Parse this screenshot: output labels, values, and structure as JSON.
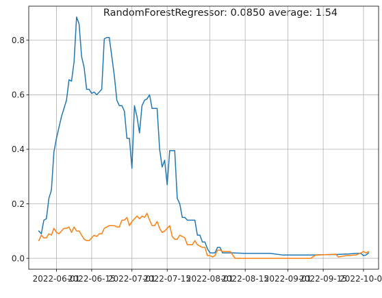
{
  "chart_data": {
    "type": "line",
    "title": "RandomForestRegressor: 0.0850 average: 1.54",
    "xlabel": "",
    "ylabel": "",
    "grid": true,
    "x_range": [
      "2022-05-21",
      "2022-10-07"
    ],
    "ylim": [
      -0.04,
      0.925
    ],
    "x_ticks": [
      "2022-06-01",
      "2022-06-15",
      "2022-07-01",
      "2022-07-15",
      "2022-08-01",
      "2022-08-15",
      "2022-09-01",
      "2022-09-15",
      "2022-10-01"
    ],
    "y_ticks": [
      "0.0",
      "0.2",
      "0.4",
      "0.6",
      "0.8"
    ],
    "series": [
      {
        "color": "#1f77b4",
        "points": [
          [
            "2022-05-25",
            0.1
          ],
          [
            "2022-05-26",
            0.09
          ],
          [
            "2022-05-27",
            0.14
          ],
          [
            "2022-05-28",
            0.145
          ],
          [
            "2022-05-29",
            0.22
          ],
          [
            "2022-05-30",
            0.25
          ],
          [
            "2022-05-31",
            0.39
          ],
          [
            "2022-06-01",
            0.44
          ],
          [
            "2022-06-02",
            0.48
          ],
          [
            "2022-06-03",
            0.52
          ],
          [
            "2022-06-04",
            0.55
          ],
          [
            "2022-06-05",
            0.58
          ],
          [
            "2022-06-06",
            0.655
          ],
          [
            "2022-06-07",
            0.65
          ],
          [
            "2022-06-08",
            0.72
          ],
          [
            "2022-06-09",
            0.885
          ],
          [
            "2022-06-10",
            0.86
          ],
          [
            "2022-06-11",
            0.74
          ],
          [
            "2022-06-12",
            0.7
          ],
          [
            "2022-06-13",
            0.62
          ],
          [
            "2022-06-14",
            0.62
          ],
          [
            "2022-06-15",
            0.605
          ],
          [
            "2022-06-16",
            0.61
          ],
          [
            "2022-06-17",
            0.6
          ],
          [
            "2022-06-18",
            0.61
          ],
          [
            "2022-06-19",
            0.62
          ],
          [
            "2022-06-20",
            0.805
          ],
          [
            "2022-06-21",
            0.81
          ],
          [
            "2022-06-22",
            0.81
          ],
          [
            "2022-06-23",
            0.74
          ],
          [
            "2022-06-24",
            0.67
          ],
          [
            "2022-06-25",
            0.58
          ],
          [
            "2022-06-26",
            0.56
          ],
          [
            "2022-06-27",
            0.56
          ],
          [
            "2022-06-28",
            0.54
          ],
          [
            "2022-06-29",
            0.44
          ],
          [
            "2022-06-30",
            0.44
          ],
          [
            "2022-07-01",
            0.33
          ],
          [
            "2022-07-02",
            0.56
          ],
          [
            "2022-07-03",
            0.52
          ],
          [
            "2022-07-04",
            0.46
          ],
          [
            "2022-07-05",
            0.56
          ],
          [
            "2022-07-06",
            0.58
          ],
          [
            "2022-07-07",
            0.585
          ],
          [
            "2022-07-08",
            0.6
          ],
          [
            "2022-07-09",
            0.55
          ],
          [
            "2022-07-10",
            0.55
          ],
          [
            "2022-07-11",
            0.55
          ],
          [
            "2022-07-12",
            0.4
          ],
          [
            "2022-07-13",
            0.335
          ],
          [
            "2022-07-14",
            0.36
          ],
          [
            "2022-07-15",
            0.27
          ],
          [
            "2022-07-16",
            0.395
          ],
          [
            "2022-07-17",
            0.395
          ],
          [
            "2022-07-18",
            0.395
          ],
          [
            "2022-07-19",
            0.22
          ],
          [
            "2022-07-20",
            0.2
          ],
          [
            "2022-07-21",
            0.15
          ],
          [
            "2022-07-22",
            0.15
          ],
          [
            "2022-07-23",
            0.14
          ],
          [
            "2022-07-24",
            0.14
          ],
          [
            "2022-07-25",
            0.14
          ],
          [
            "2022-07-26",
            0.14
          ],
          [
            "2022-07-27",
            0.085
          ],
          [
            "2022-07-28",
            0.085
          ],
          [
            "2022-07-29",
            0.06
          ],
          [
            "2022-07-30",
            0.06
          ],
          [
            "2022-07-31",
            0.035
          ],
          [
            "2022-08-01",
            0.02
          ],
          [
            "2022-08-02",
            0.02
          ],
          [
            "2022-08-03",
            0.02
          ],
          [
            "2022-08-04",
            0.04
          ],
          [
            "2022-08-05",
            0.04
          ],
          [
            "2022-08-06",
            0.02
          ],
          [
            "2022-08-10",
            0.02
          ],
          [
            "2022-08-15",
            0.018
          ],
          [
            "2022-08-20",
            0.018
          ],
          [
            "2022-08-25",
            0.018
          ],
          [
            "2022-08-30",
            0.012
          ],
          [
            "2022-09-05",
            0.012
          ],
          [
            "2022-09-10",
            0.012
          ],
          [
            "2022-09-14",
            0.013
          ],
          [
            "2022-09-20",
            0.014
          ],
          [
            "2022-09-25",
            0.016
          ],
          [
            "2022-09-28",
            0.018
          ],
          [
            "2022-09-30",
            0.018
          ],
          [
            "2022-10-01",
            0.01
          ],
          [
            "2022-10-02",
            0.012
          ],
          [
            "2022-10-03",
            0.02
          ]
        ]
      },
      {
        "color": "#ff7f0e",
        "points": [
          [
            "2022-05-25",
            0.065
          ],
          [
            "2022-05-26",
            0.085
          ],
          [
            "2022-05-27",
            0.075
          ],
          [
            "2022-05-28",
            0.075
          ],
          [
            "2022-05-29",
            0.09
          ],
          [
            "2022-05-30",
            0.085
          ],
          [
            "2022-05-31",
            0.11
          ],
          [
            "2022-06-01",
            0.095
          ],
          [
            "2022-06-02",
            0.09
          ],
          [
            "2022-06-03",
            0.1
          ],
          [
            "2022-06-04",
            0.11
          ],
          [
            "2022-06-05",
            0.11
          ],
          [
            "2022-06-06",
            0.115
          ],
          [
            "2022-06-07",
            0.095
          ],
          [
            "2022-06-08",
            0.115
          ],
          [
            "2022-06-09",
            0.1
          ],
          [
            "2022-06-10",
            0.1
          ],
          [
            "2022-06-11",
            0.085
          ],
          [
            "2022-06-12",
            0.07
          ],
          [
            "2022-06-13",
            0.065
          ],
          [
            "2022-06-14",
            0.065
          ],
          [
            "2022-06-15",
            0.075
          ],
          [
            "2022-06-16",
            0.085
          ],
          [
            "2022-06-17",
            0.08
          ],
          [
            "2022-06-18",
            0.09
          ],
          [
            "2022-06-19",
            0.09
          ],
          [
            "2022-06-20",
            0.11
          ],
          [
            "2022-06-21",
            0.115
          ],
          [
            "2022-06-22",
            0.12
          ],
          [
            "2022-06-23",
            0.12
          ],
          [
            "2022-06-24",
            0.12
          ],
          [
            "2022-06-25",
            0.115
          ],
          [
            "2022-06-26",
            0.115
          ],
          [
            "2022-06-27",
            0.14
          ],
          [
            "2022-06-28",
            0.14
          ],
          [
            "2022-06-29",
            0.15
          ],
          [
            "2022-06-30",
            0.12
          ],
          [
            "2022-07-01",
            0.135
          ],
          [
            "2022-07-02",
            0.145
          ],
          [
            "2022-07-03",
            0.155
          ],
          [
            "2022-07-04",
            0.145
          ],
          [
            "2022-07-05",
            0.155
          ],
          [
            "2022-07-06",
            0.15
          ],
          [
            "2022-07-07",
            0.165
          ],
          [
            "2022-07-08",
            0.14
          ],
          [
            "2022-07-09",
            0.12
          ],
          [
            "2022-07-10",
            0.12
          ],
          [
            "2022-07-11",
            0.135
          ],
          [
            "2022-07-12",
            0.11
          ],
          [
            "2022-07-13",
            0.095
          ],
          [
            "2022-07-14",
            0.1
          ],
          [
            "2022-07-15",
            0.11
          ],
          [
            "2022-07-16",
            0.12
          ],
          [
            "2022-07-17",
            0.08
          ],
          [
            "2022-07-18",
            0.07
          ],
          [
            "2022-07-19",
            0.07
          ],
          [
            "2022-07-20",
            0.085
          ],
          [
            "2022-07-21",
            0.08
          ],
          [
            "2022-07-22",
            0.075
          ],
          [
            "2022-07-23",
            0.05
          ],
          [
            "2022-07-24",
            0.05
          ],
          [
            "2022-07-25",
            0.05
          ],
          [
            "2022-07-26",
            0.065
          ],
          [
            "2022-07-27",
            0.05
          ],
          [
            "2022-07-28",
            0.045
          ],
          [
            "2022-07-29",
            0.04
          ],
          [
            "2022-07-30",
            0.04
          ],
          [
            "2022-07-31",
            0.01
          ],
          [
            "2022-08-01",
            0.01
          ],
          [
            "2022-08-02",
            0.005
          ],
          [
            "2022-08-03",
            0.01
          ],
          [
            "2022-08-04",
            0.03
          ],
          [
            "2022-08-05",
            0.03
          ],
          [
            "2022-08-06",
            0.025
          ],
          [
            "2022-08-09",
            0.025
          ],
          [
            "2022-08-11",
            0.0
          ],
          [
            "2022-08-20",
            0.0
          ],
          [
            "2022-08-30",
            0.0
          ],
          [
            "2022-09-10",
            0.0
          ],
          [
            "2022-09-12",
            0.012
          ],
          [
            "2022-09-20",
            0.015
          ],
          [
            "2022-09-21",
            0.005
          ],
          [
            "2022-09-24",
            0.01
          ],
          [
            "2022-09-28",
            0.012
          ],
          [
            "2022-09-30",
            0.02
          ],
          [
            "2022-10-01",
            0.025
          ],
          [
            "2022-10-02",
            0.02
          ],
          [
            "2022-10-03",
            0.025
          ]
        ]
      }
    ]
  }
}
